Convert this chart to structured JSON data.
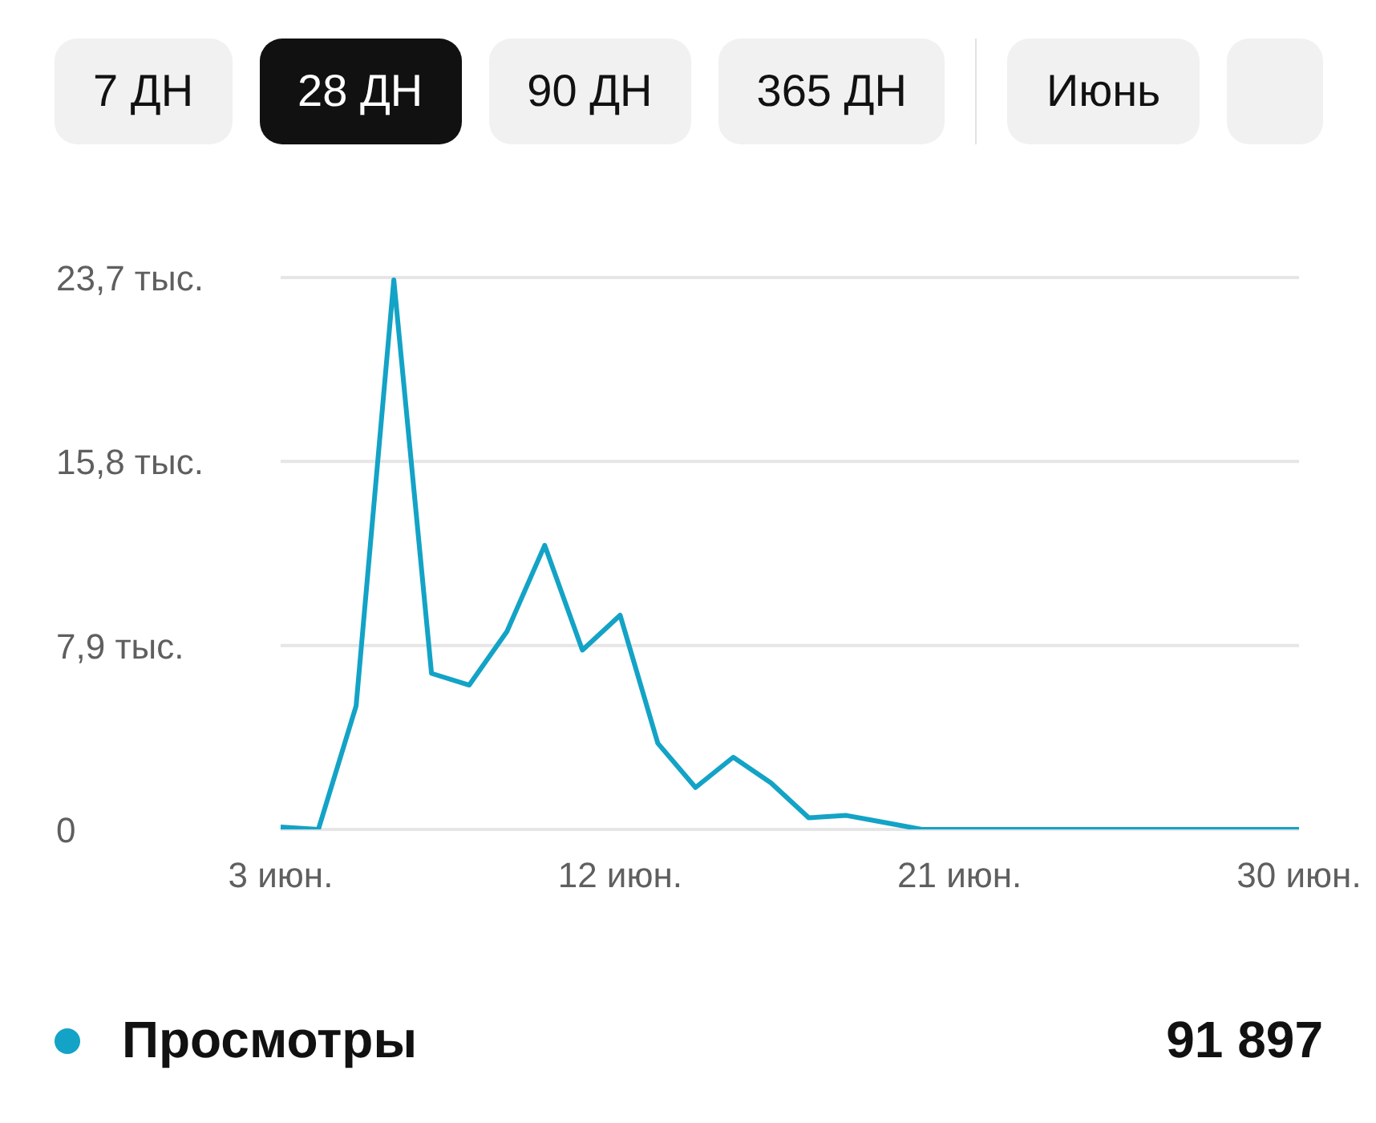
{
  "chart_data": {
    "type": "line",
    "categories": [
      "3 июн.",
      null,
      null,
      null,
      null,
      null,
      null,
      null,
      null,
      "12 июн.",
      null,
      null,
      null,
      null,
      null,
      null,
      null,
      null,
      "21 июн.",
      null,
      null,
      null,
      null,
      null,
      null,
      null,
      null,
      "30 июн."
    ],
    "series": [
      {
        "name": "Просмотры",
        "color": "#13a3c6",
        "values": [
          0.1,
          0,
          5.3,
          23.6,
          6.7,
          6.2,
          8.5,
          12.2,
          7.7,
          9.2,
          3.7,
          1.8,
          3.1,
          2.0,
          0.5,
          0.6,
          0.3,
          0,
          0,
          0,
          0,
          0,
          0,
          0,
          0,
          0,
          0,
          0
        ]
      }
    ],
    "ylim": [
      0,
      23.7
    ],
    "yticks": [
      {
        "value": 0,
        "label": "0"
      },
      {
        "value": 7.9,
        "label": "7,9 тыс."
      },
      {
        "value": 15.8,
        "label": "15,8 тыс."
      },
      {
        "value": 23.7,
        "label": "23,7 тыс."
      }
    ],
    "grid": "y",
    "marker": "none",
    "line_style": "solid",
    "legend": "bottom",
    "annotations": [
      "7 ДН",
      "28 ДН",
      "90 ДН",
      "365 ДН",
      "Июнь",
      "91 897"
    ]
  }
}
